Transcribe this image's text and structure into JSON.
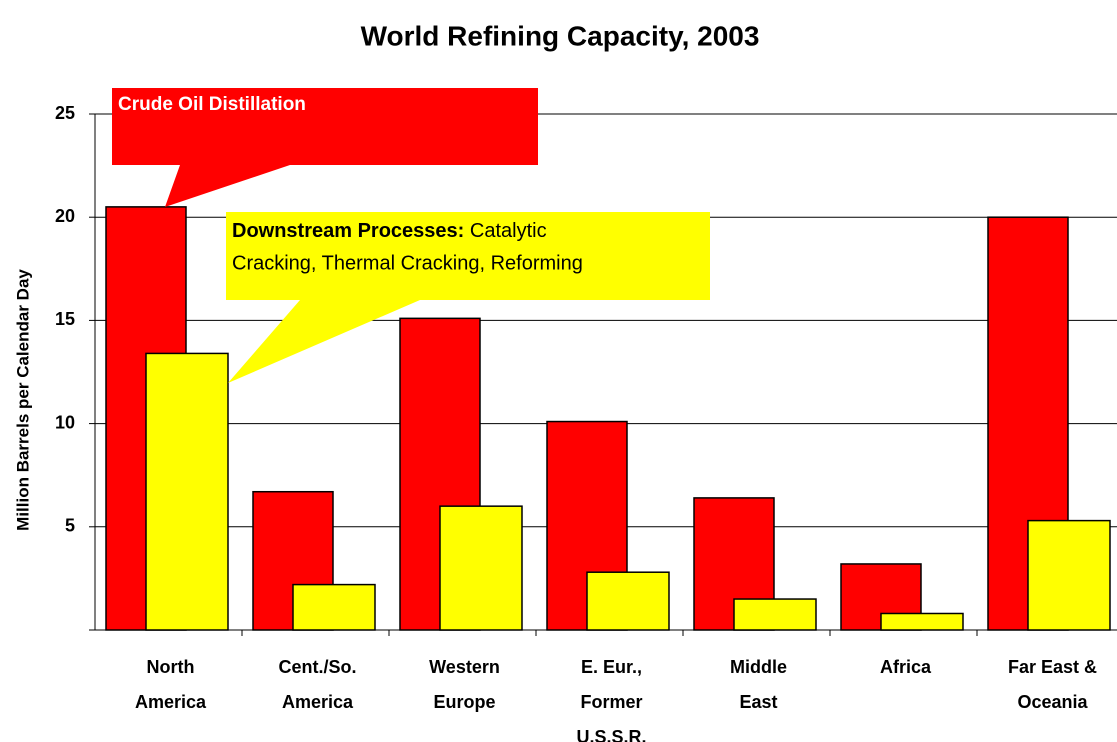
{
  "chart_data": {
    "type": "bar",
    "title": "World Refining Capacity, 2003",
    "y_label": "Million Barrels per Calendar Day",
    "categories": [
      "North\nAmerica",
      "Cent./So.\nAmerica",
      "Western\nEurope",
      "E. Eur.,\nFormer\nU.S.S.R.",
      "Middle\nEast",
      "Africa",
      "Far East &\nOceania"
    ],
    "series": [
      {
        "name": "Crude Oil Distillation",
        "color": "#ff0000",
        "values": [
          20.5,
          6.7,
          15.1,
          10.1,
          6.4,
          3.2,
          20.0
        ]
      },
      {
        "name": "Downstream Processes:",
        "description": [
          "Catalytic",
          "Cracking, Thermal Cracking, Reforming"
        ],
        "color": "#ffff00",
        "values": [
          13.4,
          2.2,
          6.0,
          2.8,
          1.5,
          0.8,
          5.3
        ]
      }
    ],
    "ylim": [
      0,
      25
    ],
    "yticks": [
      5,
      10,
      15,
      20,
      25
    ],
    "grid": true
  }
}
